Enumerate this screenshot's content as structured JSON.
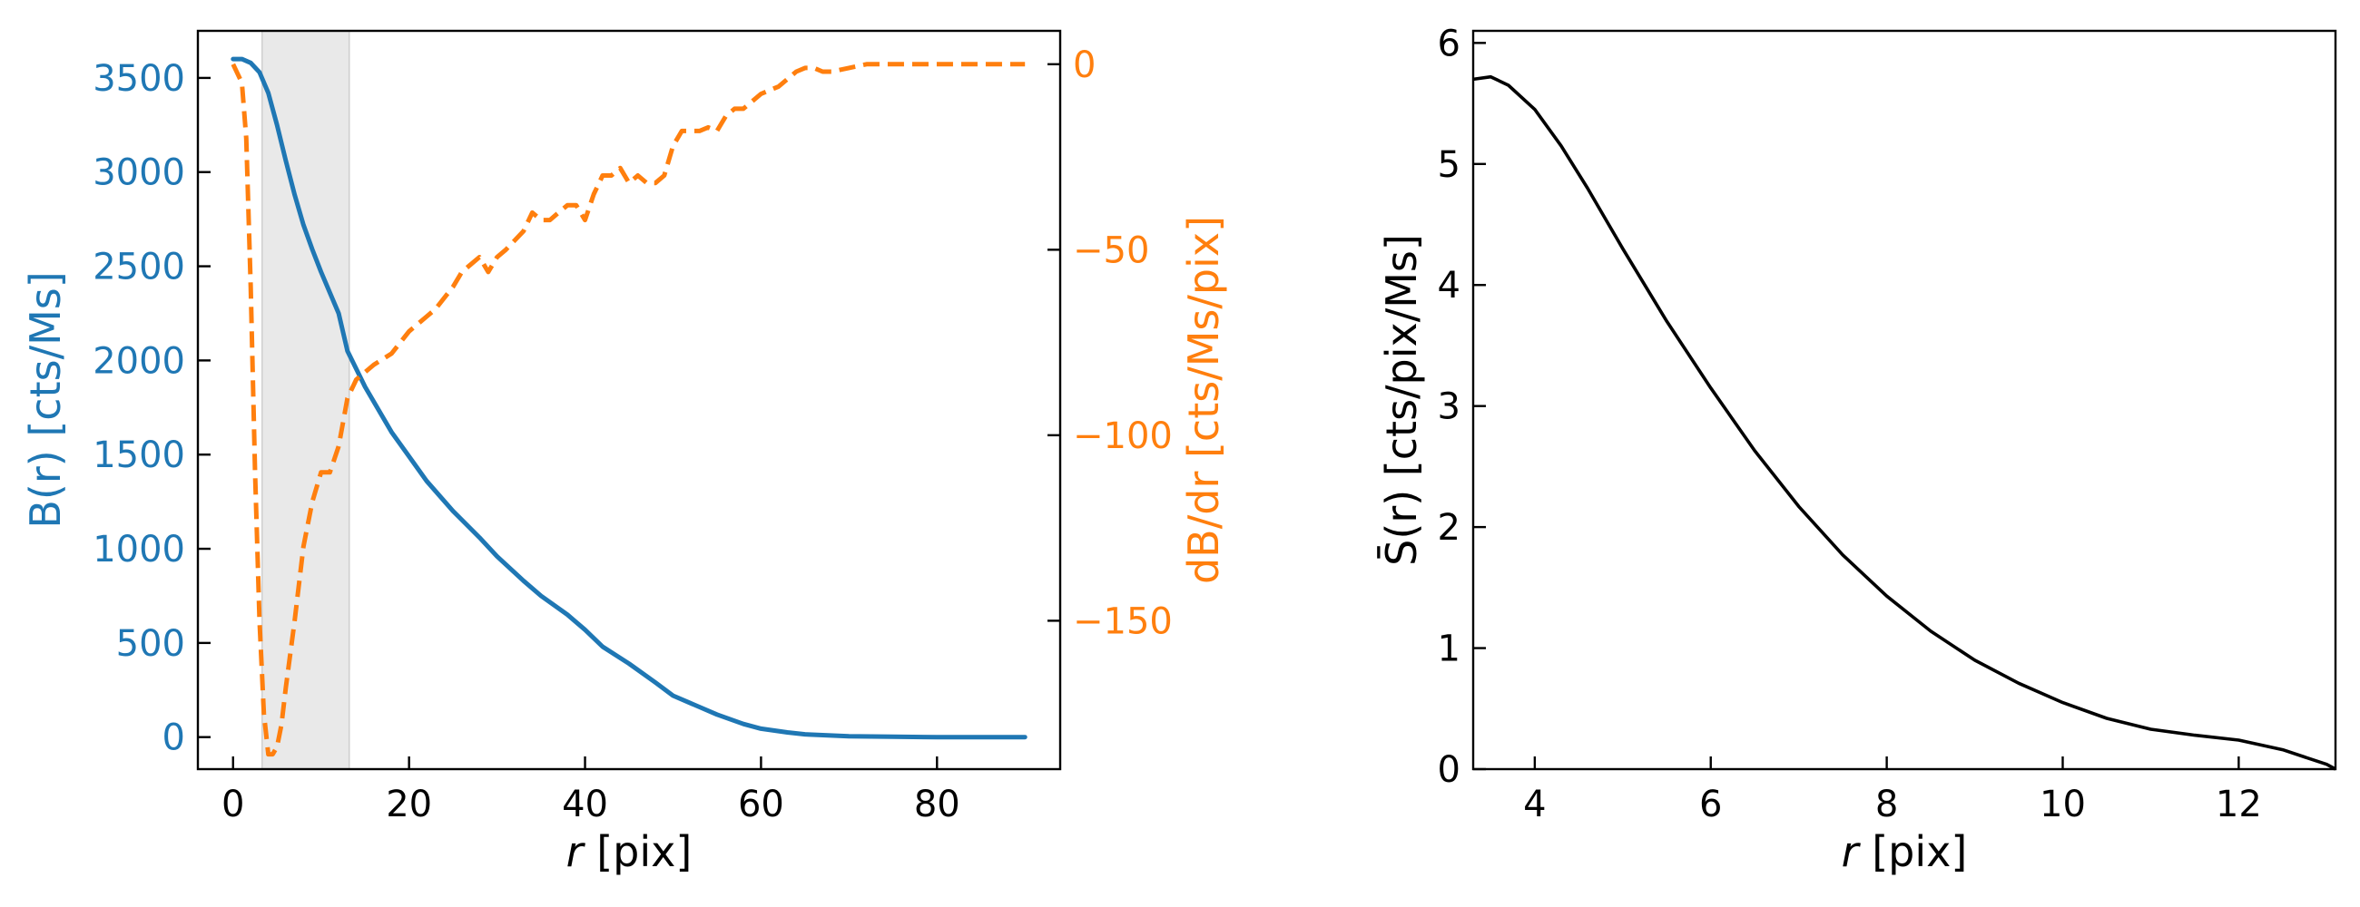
{
  "colors": {
    "blue": "#1f77b4",
    "orange": "#ff7f0e",
    "black": "#000000",
    "shade": "#e9e9e9",
    "shade_edge": "#cfcfcf"
  },
  "chart_data": [
    {
      "type": "line",
      "panel": "left",
      "xlabel_italic": "r",
      "xlabel_rest": " [pix]",
      "ylabel_left": "B(r) [cts/Ms]",
      "ylabel_right": "dB/dr [cts/Ms/pix]",
      "xlim": [
        -4,
        94
      ],
      "ylim_left": [
        -170,
        3750
      ],
      "ylim_right": [
        -190,
        9
      ],
      "xticks": [
        0,
        20,
        40,
        60,
        80
      ],
      "xtick_labels": [
        "0",
        "20",
        "40",
        "60",
        "80"
      ],
      "yticks_left": [
        0,
        500,
        1000,
        1500,
        2000,
        2500,
        3000,
        3500
      ],
      "ytick_labels_left": [
        "0",
        "500",
        "1000",
        "1500",
        "2000",
        "2500",
        "3000",
        "3500"
      ],
      "yticks_right": [
        0,
        -50,
        -100,
        -150
      ],
      "ytick_labels_right": [
        "0",
        "−50",
        "−100",
        "−150"
      ],
      "shaded_region": [
        3.3,
        13.2
      ],
      "series": [
        {
          "name": "B(r)",
          "axis": "left",
          "style": "solid",
          "x": [
            0,
            1,
            2,
            3,
            4,
            5,
            6,
            7,
            8,
            9,
            10,
            12,
            13,
            15,
            18,
            20,
            22,
            25,
            28,
            30,
            33,
            35,
            38,
            40,
            42,
            45,
            48,
            50,
            53,
            55,
            58,
            60,
            63,
            65,
            70,
            75,
            80,
            85,
            90
          ],
          "values": [
            3600,
            3600,
            3580,
            3530,
            3420,
            3250,
            3060,
            2880,
            2720,
            2590,
            2470,
            2250,
            2050,
            1860,
            1620,
            1490,
            1360,
            1200,
            1060,
            960,
            830,
            750,
            650,
            570,
            480,
            390,
            290,
            220,
            160,
            120,
            70,
            45,
            25,
            15,
            5,
            2,
            0,
            0,
            0
          ]
        },
        {
          "name": "dB/dr",
          "axis": "right",
          "style": "dashed",
          "x": [
            0,
            1,
            1.5,
            2,
            2.5,
            3,
            3.5,
            4,
            4.5,
            5,
            5.5,
            6,
            7,
            8,
            9,
            10,
            11,
            12,
            13,
            14,
            15,
            16,
            18,
            20,
            22,
            23,
            25,
            26,
            27,
            28,
            29,
            30,
            31,
            33,
            34,
            35,
            36,
            37,
            38,
            39,
            40,
            41,
            42,
            43,
            44,
            45,
            46,
            47,
            48,
            49,
            50,
            51,
            52,
            53,
            54,
            55,
            56,
            57,
            58,
            60,
            62,
            63,
            64,
            65,
            66,
            67,
            68,
            70,
            72,
            75,
            80,
            85,
            90
          ],
          "values": [
            0,
            -5,
            -20,
            -60,
            -110,
            -150,
            -175,
            -186,
            -186,
            -184,
            -178,
            -168,
            -150,
            -130,
            -118,
            -110,
            -110,
            -103,
            -90,
            -85,
            -83,
            -81,
            -78,
            -72,
            -68,
            -66,
            -60,
            -56,
            -54,
            -52,
            -56,
            -52,
            -50,
            -45,
            -40,
            -42,
            -42,
            -40,
            -38,
            -38,
            -42,
            -35,
            -30,
            -30,
            -28,
            -32,
            -30,
            -32,
            -32,
            -30,
            -22,
            -18,
            -18,
            -18,
            -17,
            -18,
            -14,
            -12,
            -12,
            -8,
            -6,
            -4,
            -2,
            -1,
            -1,
            -2,
            -2,
            -1,
            0,
            0,
            0,
            0,
            0
          ]
        }
      ]
    },
    {
      "type": "line",
      "panel": "right",
      "xlabel_italic": "r",
      "xlabel_rest": " [pix]",
      "ylabel": "S̄(r)  [cts/pix/Ms]",
      "xlim": [
        3.3,
        13.1
      ],
      "ylim": [
        0,
        6.1
      ],
      "xticks": [
        4,
        6,
        8,
        10,
        12
      ],
      "xtick_labels": [
        "4",
        "6",
        "8",
        "10",
        "12"
      ],
      "yticks": [
        0,
        1,
        2,
        3,
        4,
        5,
        6
      ],
      "ytick_labels": [
        "0",
        "1",
        "2",
        "3",
        "4",
        "5",
        "6"
      ],
      "series": [
        {
          "name": "S̄(r)",
          "style": "solid",
          "x": [
            3.3,
            3.5,
            3.7,
            4.0,
            4.3,
            4.6,
            5.0,
            5.5,
            6.0,
            6.5,
            7.0,
            7.5,
            8.0,
            8.5,
            9.0,
            9.5,
            10.0,
            10.5,
            11.0,
            11.5,
            12.0,
            12.5,
            13.0,
            13.1
          ],
          "values": [
            5.7,
            5.72,
            5.65,
            5.45,
            5.15,
            4.8,
            4.3,
            3.7,
            3.15,
            2.63,
            2.17,
            1.77,
            1.43,
            1.14,
            0.9,
            0.71,
            0.55,
            0.42,
            0.33,
            0.28,
            0.24,
            0.16,
            0.04,
            0.0
          ]
        }
      ]
    }
  ]
}
